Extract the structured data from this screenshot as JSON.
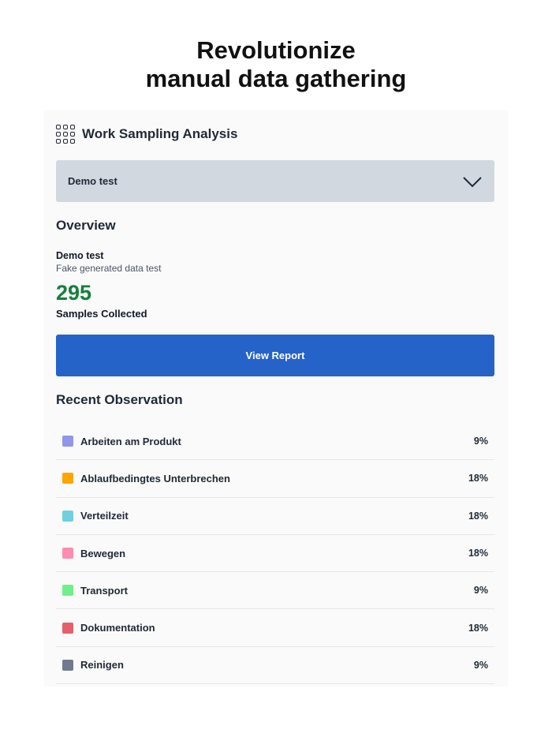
{
  "headline": {
    "line1": "Revolutionize",
    "line2": "manual data gathering"
  },
  "app": {
    "title": "Work Sampling Analysis",
    "icon": "grid-icon"
  },
  "select": {
    "value": "Demo test"
  },
  "overview": {
    "heading": "Overview",
    "name": "Demo test",
    "description": "Fake generated data test",
    "count": "295",
    "count_label": "Samples Collected",
    "button": "View Report"
  },
  "recent": {
    "heading": "Recent Observation",
    "items": [
      {
        "label": "Arbeiten am Produkt",
        "percent": "9%",
        "color": "#9097ea"
      },
      {
        "label": "Ablaufbedingtes Unterbrechen",
        "percent": "18%",
        "color": "#ffa500"
      },
      {
        "label": "Verteilzeit",
        "percent": "18%",
        "color": "#6fd0e0"
      },
      {
        "label": "Bewegen",
        "percent": "18%",
        "color": "#ff8bb0"
      },
      {
        "label": "Transport",
        "percent": "9%",
        "color": "#6ef08a"
      },
      {
        "label": "Dokumentation",
        "percent": "18%",
        "color": "#e5606a"
      },
      {
        "label": "Reinigen",
        "percent": "9%",
        "color": "#6f7a91"
      }
    ]
  },
  "colors": {
    "accent": "#2563c9",
    "count": "#15803d"
  }
}
